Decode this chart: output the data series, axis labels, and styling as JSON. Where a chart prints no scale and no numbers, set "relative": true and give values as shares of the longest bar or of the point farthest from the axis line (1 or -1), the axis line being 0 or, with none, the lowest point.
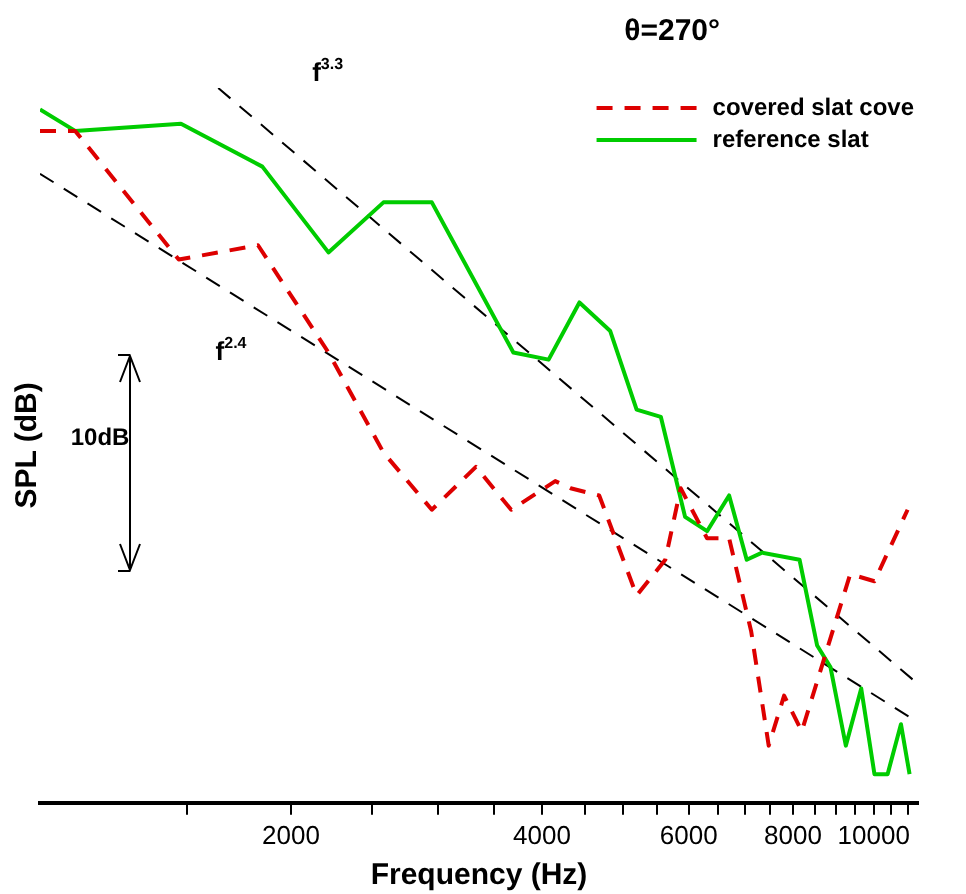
{
  "chart_data": {
    "type": "line",
    "title": "θ=270°",
    "xlabel": "Frequency (Hz)",
    "ylabel": "SPL (dB)",
    "relative": true,
    "log": "x",
    "grid": false,
    "legend": "top right",
    "marker": "none",
    "xlim": [
      1000,
      11300
    ],
    "xticks": [
      {
        "value": 1500,
        "label": null
      },
      2000,
      {
        "value": 2500,
        "label": null
      },
      {
        "value": 3000,
        "label": null
      },
      {
        "value": 3500,
        "label": null
      },
      4000,
      {
        "value": 4500,
        "label": null
      },
      {
        "value": 5000,
        "label": null
      },
      {
        "value": 5500,
        "label": null
      },
      6000,
      {
        "value": 6500,
        "label": null
      },
      {
        "value": 7000,
        "label": null
      },
      {
        "value": 7500,
        "label": null
      },
      8000,
      {
        "value": 8500,
        "label": null
      },
      {
        "value": 9000,
        "label": null
      },
      {
        "value": 9500,
        "label": null
      },
      10000,
      {
        "value": 10500,
        "label": null
      },
      {
        "value": 11000,
        "label": null
      }
    ],
    "annotations": [
      "f$^{3.3}$",
      "f$^{2.4}$",
      "10dB"
    ],
    "series": [
      {
        "name": "covered slat cove",
        "color": "#dd0000",
        "line_style": "dashed",
        "x": [
          1000,
          1102,
          1467,
          1826,
          2218,
          2582,
          2951,
          3333,
          3674,
          4149,
          4329,
          4685,
          5195,
          5623,
          5867,
          6311,
          6707,
          7128,
          7482,
          7807,
          8197,
          9371,
          10020,
          10980
        ],
        "values": [
          0.94,
          0.94,
          0.76,
          0.78,
          0.63,
          0.49,
          0.41,
          0.47,
          0.41,
          0.45,
          0.44,
          0.43,
          0.29,
          0.34,
          0.44,
          0.37,
          0.37,
          0.24,
          0.08,
          0.15,
          0.1,
          0.32,
          0.31,
          0.41
        ]
      },
      {
        "name": "reference slat",
        "color": "#00cc00",
        "line_style": "solid",
        "x": [
          1000,
          1102,
          1476,
          1848,
          2218,
          2582,
          2951,
          3696,
          4074,
          4436,
          4830,
          5195,
          5554,
          5939,
          6311,
          6707,
          7041,
          7346,
          8147,
          8553,
          8872,
          9258,
          9660,
          10020,
          10390,
          10780,
          11040
        ],
        "values": [
          0.97,
          0.94,
          0.95,
          0.89,
          0.77,
          0.84,
          0.84,
          0.63,
          0.62,
          0.7,
          0.66,
          0.55,
          0.54,
          0.4,
          0.38,
          0.43,
          0.34,
          0.35,
          0.34,
          0.22,
          0.19,
          0.08,
          0.16,
          0.04,
          0.04,
          0.11,
          0.04
        ]
      },
      {
        "type": "line",
        "color": "#000000",
        "line_style": "dashed",
        "x": [
          1636,
          11200
        ],
        "values": [
          1,
          0.17
        ]
      },
      {
        "type": "line",
        "color": "#000000",
        "line_style": "dashed",
        "x": [
          1000,
          11040
        ],
        "values": [
          0.88,
          0.12
        ]
      }
    ]
  }
}
